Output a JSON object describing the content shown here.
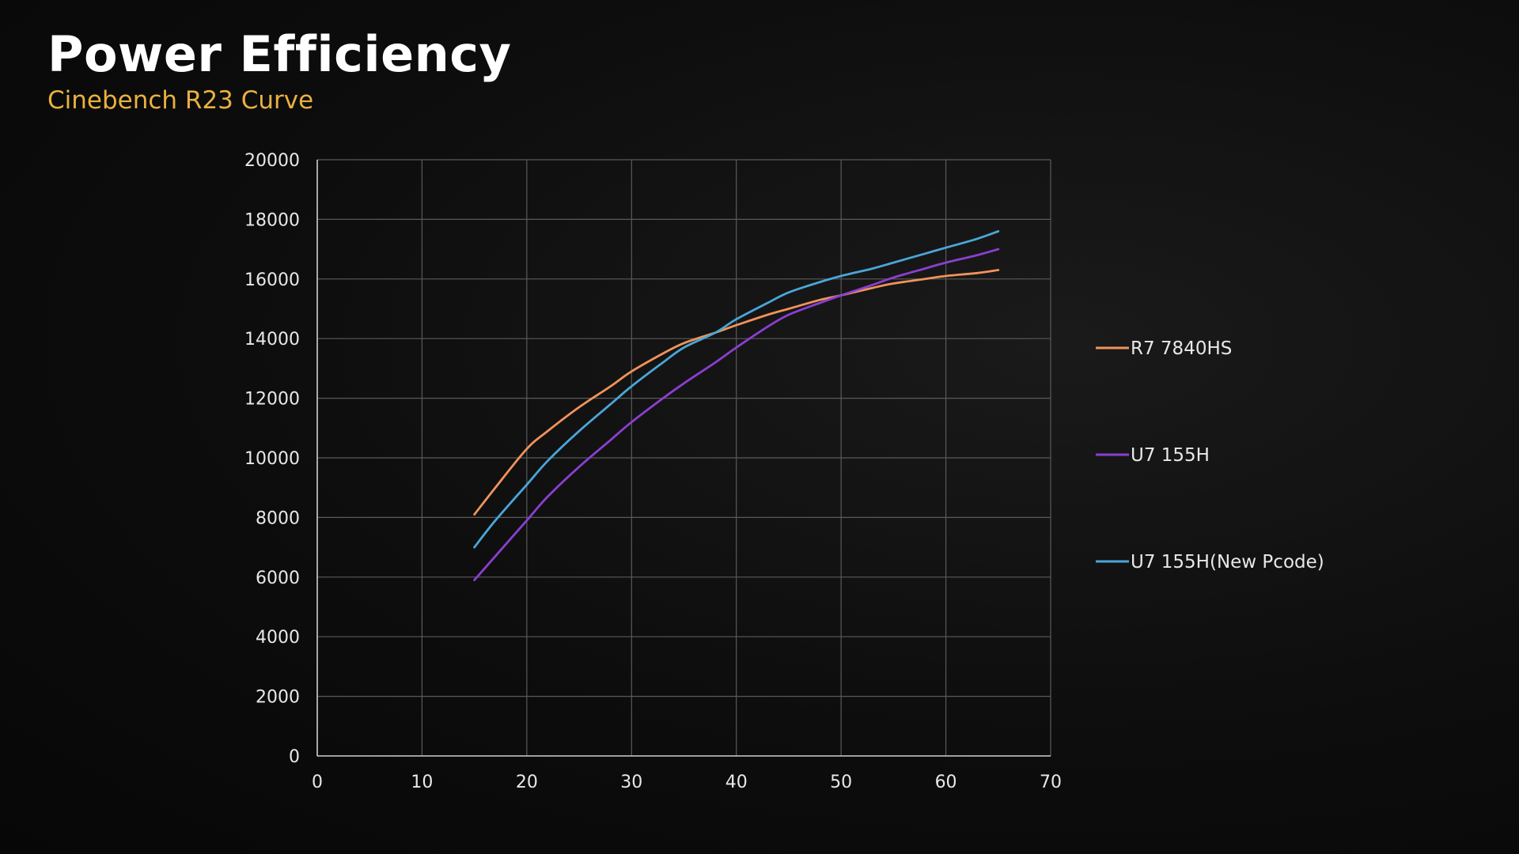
{
  "header": {
    "title": "Power Efficiency",
    "subtitle": "Cinebench R23 Curve"
  },
  "chart_data": {
    "type": "line",
    "title": "Power Efficiency",
    "subtitle": "Cinebench R23 Curve",
    "xlabel": "",
    "ylabel": "",
    "xlim": [
      0,
      70
    ],
    "ylim": [
      0,
      20000
    ],
    "x_ticks": [
      0,
      10,
      20,
      30,
      40,
      50,
      60,
      70
    ],
    "y_ticks": [
      0,
      2000,
      4000,
      6000,
      8000,
      10000,
      12000,
      14000,
      16000,
      18000,
      20000
    ],
    "grid": true,
    "legend_position": "right",
    "series": [
      {
        "name": "R7 7840HS",
        "color": "#f0935a",
        "x": [
          15,
          17,
          20,
          22,
          25,
          28,
          30,
          33,
          35,
          38,
          40,
          43,
          45,
          48,
          50,
          53,
          55,
          58,
          60,
          63,
          65
        ],
        "y": [
          8100,
          9000,
          10300,
          10900,
          11700,
          12400,
          12900,
          13500,
          13850,
          14200,
          14450,
          14800,
          15000,
          15300,
          15450,
          15700,
          15850,
          16000,
          16100,
          16200,
          16300
        ]
      },
      {
        "name": "U7 155H",
        "color": "#8a3fd1",
        "x": [
          15,
          17,
          20,
          22,
          25,
          28,
          30,
          33,
          35,
          38,
          40,
          43,
          45,
          48,
          50,
          53,
          55,
          58,
          60,
          63,
          65
        ],
        "y": [
          5900,
          6700,
          7900,
          8700,
          9700,
          10600,
          11200,
          12000,
          12500,
          13200,
          13700,
          14400,
          14800,
          15200,
          15450,
          15800,
          16050,
          16350,
          16550,
          16800,
          17000
        ]
      },
      {
        "name": "U7 155H(New Pcode)",
        "color": "#4aa6d8",
        "x": [
          15,
          17,
          20,
          22,
          25,
          28,
          30,
          33,
          35,
          38,
          40,
          43,
          45,
          48,
          50,
          53,
          55,
          58,
          60,
          63,
          65
        ],
        "y": [
          7000,
          7900,
          9100,
          9900,
          10900,
          11800,
          12400,
          13200,
          13700,
          14200,
          14650,
          15200,
          15550,
          15900,
          16100,
          16350,
          16550,
          16850,
          17050,
          17350,
          17600
        ]
      }
    ]
  }
}
